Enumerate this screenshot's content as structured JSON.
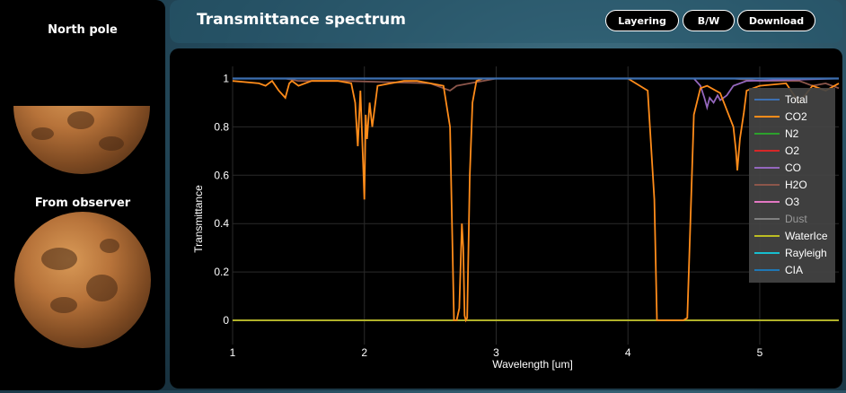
{
  "sidebar": {
    "north_pole_label": "North pole",
    "from_observer_label": "From observer"
  },
  "header": {
    "title": "Transmittance spectrum",
    "buttons": {
      "layering": "Layering",
      "bw": "B/W",
      "download": "Download"
    }
  },
  "colors": {
    "Total": "#3d6fb0",
    "CO2": "#ff8c1a",
    "N2": "#2ca02c",
    "O2": "#d62728",
    "CO": "#9467bd",
    "H2O": "#8c564b",
    "O3": "#e377c2",
    "Dust": "#7f7f7f",
    "WaterIce": "#bcbd22",
    "Rayleigh": "#17becf",
    "CIA": "#1f77b4"
  },
  "chart_data": {
    "type": "line",
    "xlabel": "Wavelength [um]",
    "ylabel": "Transmittance",
    "xlim": [
      1,
      5.6
    ],
    "ylim": [
      -0.1,
      1.05
    ],
    "xticks": [
      1,
      2,
      3,
      4,
      5
    ],
    "yticks": [
      0,
      0.2,
      0.4,
      0.6,
      0.8,
      1
    ],
    "ytick_labels": [
      "0",
      "0.2",
      "0.4",
      "0.6",
      "0.8",
      "1"
    ],
    "grid": true,
    "legend_position": "right",
    "series": [
      {
        "name": "Total",
        "x": [
          1,
          5.6
        ],
        "y": [
          1,
          1
        ]
      },
      {
        "name": "CO2",
        "x": [
          1.0,
          1.2,
          1.25,
          1.3,
          1.35,
          1.4,
          1.43,
          1.45,
          1.5,
          1.6,
          1.8,
          1.9,
          1.93,
          1.95,
          1.97,
          1.99,
          2.0,
          2.01,
          2.02,
          2.04,
          2.06,
          2.1,
          2.2,
          2.3,
          2.4,
          2.5,
          2.6,
          2.65,
          2.68,
          2.7,
          2.72,
          2.74,
          2.75,
          2.76,
          2.77,
          2.78,
          2.8,
          2.82,
          2.85,
          2.9,
          3.0,
          3.2,
          3.5,
          3.8,
          4.0,
          4.15,
          4.2,
          4.22,
          4.25,
          4.3,
          4.35,
          4.4,
          4.42,
          4.45,
          4.5,
          4.55,
          4.6,
          4.7,
          4.8,
          4.82,
          4.83,
          4.85,
          4.88,
          4.9,
          5.0,
          5.2,
          5.25,
          5.3,
          5.4,
          5.5,
          5.6
        ],
        "y": [
          0.99,
          0.98,
          0.97,
          0.99,
          0.95,
          0.92,
          0.98,
          0.99,
          0.97,
          0.99,
          0.99,
          0.98,
          0.9,
          0.72,
          0.95,
          0.65,
          0.5,
          0.85,
          0.75,
          0.9,
          0.8,
          0.97,
          0.98,
          0.99,
          0.99,
          0.98,
          0.97,
          0.8,
          0.0,
          0.0,
          0.05,
          0.4,
          0.3,
          0.02,
          0.0,
          0.01,
          0.6,
          0.9,
          0.99,
          1.0,
          1.0,
          1.0,
          1.0,
          1.0,
          1.0,
          0.95,
          0.5,
          0.0,
          0.0,
          0.0,
          0.0,
          0.0,
          0.0,
          0.01,
          0.85,
          0.96,
          0.97,
          0.94,
          0.8,
          0.7,
          0.62,
          0.75,
          0.86,
          0.95,
          0.97,
          0.98,
          0.94,
          0.9,
          0.97,
          0.95,
          0.98
        ]
      },
      {
        "name": "N2",
        "x": [
          1,
          5.6
        ],
        "y": [
          1,
          1
        ]
      },
      {
        "name": "O2",
        "x": [
          1,
          5.6
        ],
        "y": [
          1,
          1
        ]
      },
      {
        "name": "CO",
        "x": [
          1,
          4.5,
          4.55,
          4.58,
          4.6,
          4.62,
          4.65,
          4.68,
          4.7,
          4.75,
          4.8,
          4.9,
          5.6
        ],
        "y": [
          1,
          1,
          0.97,
          0.92,
          0.88,
          0.92,
          0.9,
          0.93,
          0.91,
          0.93,
          0.97,
          0.99,
          1
        ]
      },
      {
        "name": "H2O",
        "x": [
          1,
          1.4,
          1.5,
          1.85,
          2.5,
          2.6,
          2.65,
          2.7,
          2.8,
          3.0,
          4.8,
          5.0,
          5.3,
          5.4,
          5.5,
          5.6
        ],
        "y": [
          1,
          1,
          0.99,
          0.99,
          0.98,
          0.96,
          0.95,
          0.97,
          0.98,
          1,
          1,
          0.99,
          0.99,
          0.97,
          0.98,
          0.96
        ]
      },
      {
        "name": "O3",
        "x": [
          1,
          5.6
        ],
        "y": [
          1,
          1
        ]
      },
      {
        "name": "Dust",
        "x": [
          1,
          5.6
        ],
        "y": [
          0,
          0
        ]
      },
      {
        "name": "WaterIce",
        "x": [
          1,
          5.6
        ],
        "y": [
          0,
          0
        ]
      },
      {
        "name": "Rayleigh",
        "x": [
          1,
          5.6
        ],
        "y": [
          1,
          1
        ]
      },
      {
        "name": "CIA",
        "x": [
          1,
          5.6
        ],
        "y": [
          1,
          1
        ]
      }
    ]
  }
}
